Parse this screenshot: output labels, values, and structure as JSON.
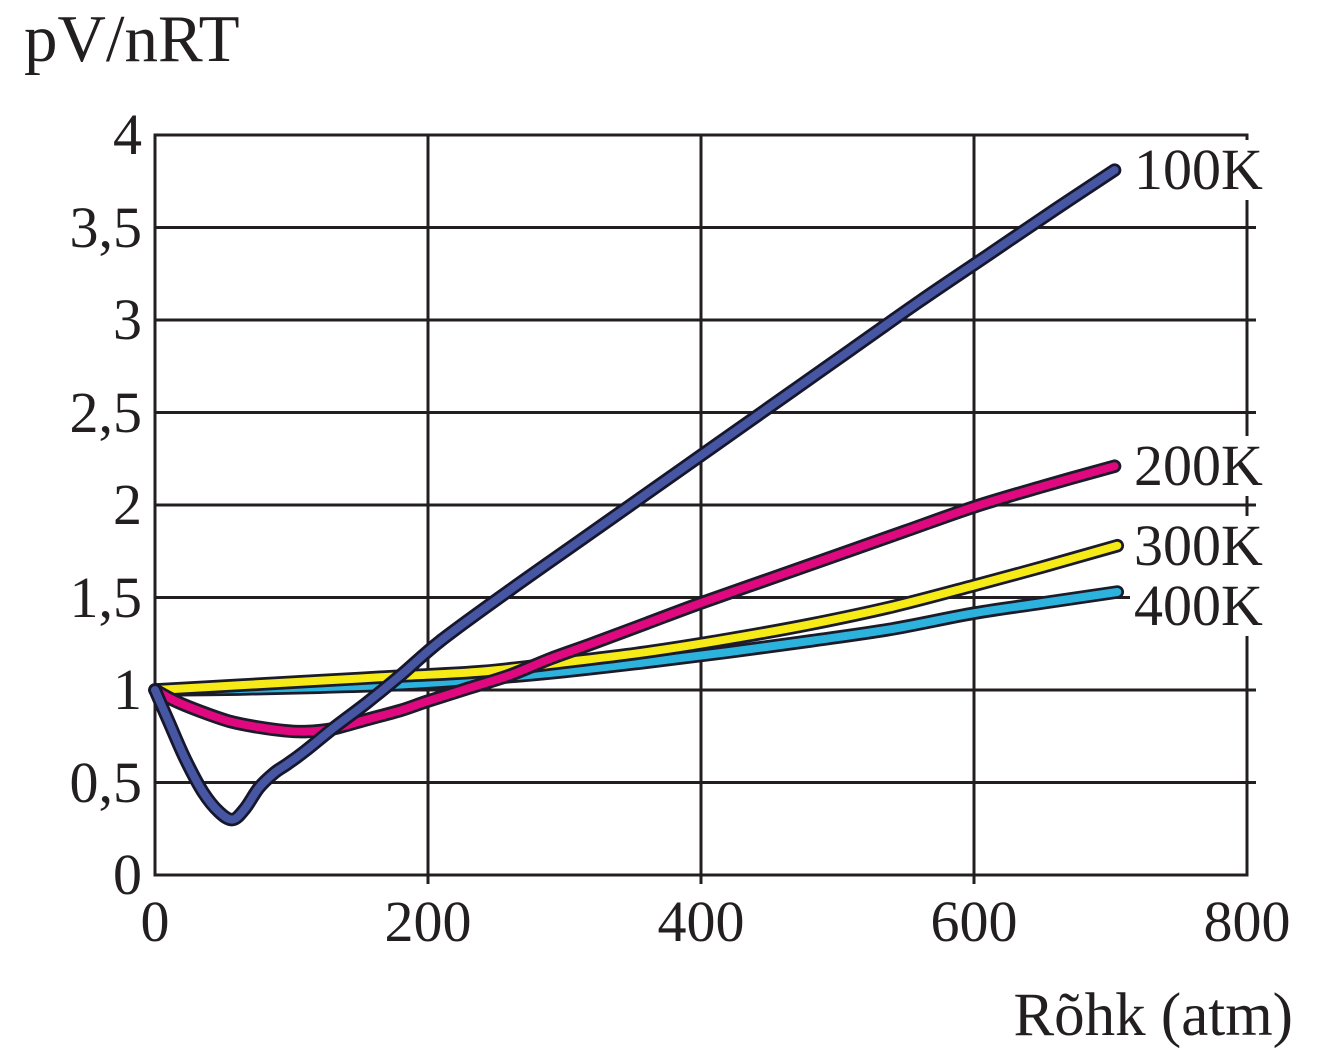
{
  "title": "pV/nRT",
  "chart_data": {
    "type": "line",
    "title": "pV/nRT",
    "xlabel": "Rõhk (atm)",
    "ylabel": "pV/nRT",
    "xlim": [
      0,
      800
    ],
    "ylim": [
      0,
      4
    ],
    "grid": true,
    "legend_position": "end-of-line labels, right side",
    "decimal_separator": ",",
    "x_tick_values": [
      0,
      200,
      400,
      600,
      800
    ],
    "x_tick_labels": [
      "0",
      "200",
      "400",
      "600",
      "800"
    ],
    "y_tick_values": [
      0,
      0.5,
      1,
      1.5,
      2,
      2.5,
      3,
      3.5,
      4
    ],
    "y_tick_labels": [
      "0",
      "0,5",
      "1",
      "1,5",
      "2",
      "2,5",
      "3",
      "3,5",
      "4"
    ],
    "axis_color": "#231f20",
    "series": [
      {
        "name": "400K",
        "color": "#2cb3dd",
        "outline_color": "#1b1b29",
        "points": [
          [
            0,
            1.0
          ],
          [
            60,
            1.005
          ],
          [
            120,
            1.015
          ],
          [
            180,
            1.03
          ],
          [
            240,
            1.06
          ],
          [
            300,
            1.1
          ],
          [
            360,
            1.15
          ],
          [
            420,
            1.205
          ],
          [
            480,
            1.265
          ],
          [
            540,
            1.33
          ],
          [
            600,
            1.415
          ],
          [
            650,
            1.47
          ],
          [
            705,
            1.53
          ]
        ]
      },
      {
        "name": "300K",
        "color": "#f6eb16",
        "outline_color": "#1b1b29",
        "points": [
          [
            0,
            1.0
          ],
          [
            60,
            1.025
          ],
          [
            120,
            1.05
          ],
          [
            180,
            1.075
          ],
          [
            240,
            1.1
          ],
          [
            300,
            1.15
          ],
          [
            360,
            1.205
          ],
          [
            420,
            1.275
          ],
          [
            480,
            1.355
          ],
          [
            540,
            1.45
          ],
          [
            600,
            1.565
          ],
          [
            650,
            1.665
          ],
          [
            705,
            1.78
          ]
        ]
      },
      {
        "name": "200K",
        "color": "#e0087f",
        "outline_color": "#1b1b29",
        "points": [
          [
            0,
            1.0
          ],
          [
            15,
            0.94
          ],
          [
            35,
            0.88
          ],
          [
            55,
            0.83
          ],
          [
            75,
            0.8
          ],
          [
            95,
            0.78
          ],
          [
            110,
            0.775
          ],
          [
            130,
            0.79
          ],
          [
            155,
            0.84
          ],
          [
            180,
            0.89
          ],
          [
            200,
            0.94
          ],
          [
            230,
            1.01
          ],
          [
            260,
            1.08
          ],
          [
            290,
            1.17
          ],
          [
            320,
            1.25
          ],
          [
            360,
            1.36
          ],
          [
            400,
            1.47
          ],
          [
            450,
            1.6
          ],
          [
            500,
            1.73
          ],
          [
            550,
            1.86
          ],
          [
            600,
            1.99
          ],
          [
            650,
            2.1
          ],
          [
            703,
            2.21
          ]
        ]
      },
      {
        "name": "100K",
        "color": "#4656a2",
        "outline_color": "#16162c",
        "points": [
          [
            0,
            1.0
          ],
          [
            10,
            0.83
          ],
          [
            22,
            0.63
          ],
          [
            35,
            0.45
          ],
          [
            47,
            0.34
          ],
          [
            57,
            0.3
          ],
          [
            66,
            0.36
          ],
          [
            76,
            0.47
          ],
          [
            87,
            0.55
          ],
          [
            97,
            0.6
          ],
          [
            110,
            0.67
          ],
          [
            130,
            0.79
          ],
          [
            155,
            0.93
          ],
          [
            180,
            1.08
          ],
          [
            210,
            1.27
          ],
          [
            260,
            1.54
          ],
          [
            310,
            1.8
          ],
          [
            360,
            2.06
          ],
          [
            410,
            2.32
          ],
          [
            460,
            2.58
          ],
          [
            510,
            2.84
          ],
          [
            560,
            3.1
          ],
          [
            610,
            3.35
          ],
          [
            660,
            3.6
          ],
          [
            703,
            3.81
          ]
        ]
      }
    ]
  }
}
